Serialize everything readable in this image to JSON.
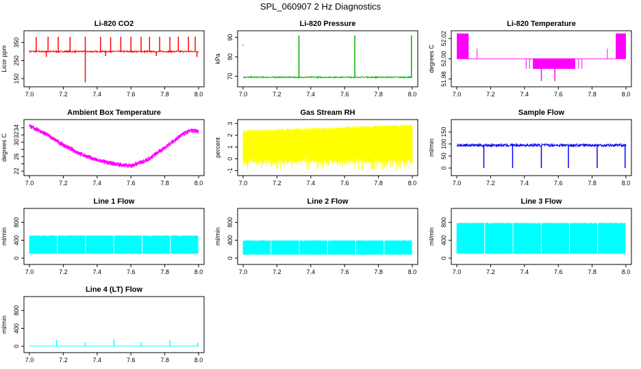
{
  "page": {
    "title": "SPL_060907  2 Hz Diagnostics"
  },
  "chart_data": [
    {
      "id": "co2",
      "type": "line",
      "title": "Li-820 CO2",
      "ylabel": "Licor ppm",
      "xlabel": "",
      "color": "#ff0000",
      "xlim": [
        7.0,
        8.0
      ],
      "ylim": [
        120,
        400
      ],
      "xticks": [
        "7.0",
        "7.2",
        "7.4",
        "7.6",
        "7.8",
        "8.0"
      ],
      "yticks": [
        150,
        250,
        350
      ],
      "ytick_labels": [
        "150",
        "250",
        "350"
      ],
      "series": {
        "name": "CO2",
        "baseline": 300,
        "noise": 4,
        "spikes": [
          [
            7.04,
            380
          ],
          [
            7.11,
            382
          ],
          [
            7.17,
            382
          ],
          [
            7.24,
            382
          ],
          [
            7.33,
            382
          ],
          [
            7.42,
            382
          ],
          [
            7.48,
            380
          ],
          [
            7.54,
            382
          ],
          [
            7.6,
            382
          ],
          [
            7.66,
            382
          ],
          [
            7.71,
            382
          ],
          [
            7.77,
            382
          ],
          [
            7.83,
            382
          ],
          [
            7.88,
            382
          ],
          [
            7.94,
            382
          ],
          [
            7.98,
            382
          ]
        ],
        "dips": [
          [
            7.33,
            130
          ],
          [
            7.1,
            270
          ],
          [
            7.45,
            275
          ],
          [
            7.75,
            275
          ],
          [
            7.99,
            270
          ]
        ]
      }
    },
    {
      "id": "pressure",
      "type": "line",
      "title": "Li-820 Pressure",
      "ylabel": "kPa",
      "xlabel": "",
      "color": "#00b000",
      "xlim": [
        7.0,
        8.0
      ],
      "ylim": [
        66,
        92
      ],
      "xticks": [
        "7.0",
        "7.2",
        "7.4",
        "7.6",
        "7.8",
        "8.0"
      ],
      "yticks": [
        70,
        80,
        90
      ],
      "ytick_labels": [
        "70",
        "80",
        "90"
      ],
      "series": {
        "name": "Pressure",
        "baseline": 69.5,
        "noise": 0.3,
        "spikes": [
          [
            7.33,
            91
          ],
          [
            7.66,
            91
          ],
          [
            7.995,
            91
          ]
        ],
        "outlier": [
          7.0,
          86
        ]
      }
    },
    {
      "id": "li820temp",
      "type": "line",
      "title": "Li-820 Temperature",
      "ylabel": "degrees C",
      "xlabel": "",
      "color": "#ff00ff",
      "xlim": [
        7.0,
        8.0
      ],
      "ylim": [
        51.975,
        52.025
      ],
      "xticks": [
        "7.0",
        "7.2",
        "7.4",
        "7.6",
        "7.8",
        "8.0"
      ],
      "yticks": [
        51.98,
        52.0,
        52.02
      ],
      "ytick_labels": [
        "51.98",
        "52.00",
        "52.02"
      ],
      "series": {
        "name": "Temperature",
        "baseline": 52.0,
        "high": 52.025,
        "mid": 52.01,
        "low": 51.99,
        "min": 51.978
      }
    },
    {
      "id": "ambient",
      "type": "line",
      "title": "Ambient Box Temperature",
      "ylabel": "degrees C",
      "xlabel": "",
      "color": "#ff00ff",
      "xlim": [
        7.0,
        8.0
      ],
      "ylim": [
        21.5,
        35.5
      ],
      "xticks": [
        "7.0",
        "7.2",
        "7.4",
        "7.6",
        "7.8",
        "8.0"
      ],
      "yticks": [
        22,
        24,
        26,
        28,
        30,
        32,
        34
      ],
      "ytick_labels": [
        "22",
        "",
        "26",
        "",
        "30",
        "32",
        "34"
      ],
      "series": {
        "name": "Ambient",
        "points": [
          [
            7.0,
            34.5
          ],
          [
            7.1,
            32.2
          ],
          [
            7.2,
            29.2
          ],
          [
            7.3,
            26.8
          ],
          [
            7.4,
            25.0
          ],
          [
            7.5,
            24.0
          ],
          [
            7.6,
            23.4
          ],
          [
            7.7,
            25.2
          ],
          [
            7.8,
            28.5
          ],
          [
            7.9,
            32.0
          ],
          [
            7.95,
            33.2
          ],
          [
            8.0,
            33.0
          ]
        ],
        "noise": 0.6
      }
    },
    {
      "id": "rh",
      "type": "line",
      "title": "Gas Stream RH",
      "ylabel": "percent",
      "xlabel": "",
      "color": "#ffff00",
      "xlim": [
        7.0,
        8.0
      ],
      "ylim": [
        -1.2,
        3.1
      ],
      "xticks": [
        "7.0",
        "7.2",
        "7.4",
        "7.6",
        "7.8",
        "8.0"
      ],
      "yticks": [
        -1,
        0,
        1,
        2,
        3
      ],
      "ytick_labels": [
        "-1",
        "0",
        "1",
        "2",
        "3"
      ],
      "series": {
        "name": "RH",
        "upper_start": 2.3,
        "upper_end": 2.8,
        "lower": -0.2,
        "min": -1.0
      }
    },
    {
      "id": "sample",
      "type": "line",
      "title": "Sample Flow",
      "ylabel": "ml/min",
      "xlabel": "",
      "color": "#0000ff",
      "xlim": [
        7.0,
        8.0
      ],
      "ylim": [
        -20,
        190
      ],
      "xticks": [
        "7.0",
        "7.2",
        "7.4",
        "7.6",
        "7.8",
        "8.0"
      ],
      "yticks": [
        0,
        50,
        100,
        150
      ],
      "ytick_labels": [
        "0",
        "50",
        "100",
        "150"
      ],
      "series": {
        "name": "Sample",
        "baseline": 95,
        "noise": 6,
        "dips": [
          [
            7.16,
            0
          ],
          [
            7.33,
            0
          ],
          [
            7.5,
            0
          ],
          [
            7.66,
            0
          ],
          [
            7.83,
            0
          ],
          [
            7.995,
            0
          ]
        ]
      }
    },
    {
      "id": "line1",
      "type": "line",
      "title": "Line 1 Flow",
      "ylabel": "ml/min",
      "xlabel": "",
      "color": "#00ffff",
      "xlim": [
        7.0,
        8.0
      ],
      "ylim": [
        -80,
        1050
      ],
      "xticks": [
        "7.0",
        "7.2",
        "7.4",
        "7.6",
        "7.8",
        "8.0"
      ],
      "yticks": [
        0,
        400,
        800
      ],
      "ytick_labels": [
        "0",
        "400",
        "800"
      ],
      "series": {
        "name": "Line 1",
        "high": 500,
        "low": 100
      }
    },
    {
      "id": "line2",
      "type": "line",
      "title": "Line 2 Flow",
      "ylabel": "ml/min",
      "xlabel": "",
      "color": "#00ffff",
      "xlim": [
        7.0,
        8.0
      ],
      "ylim": [
        -80,
        1050
      ],
      "xticks": [
        "7.0",
        "7.2",
        "7.4",
        "7.6",
        "7.8",
        "8.0"
      ],
      "yticks": [
        0,
        400,
        800
      ],
      "ytick_labels": [
        "0",
        "400",
        "800"
      ],
      "series": {
        "name": "Line 2",
        "high": 390,
        "low": 80
      }
    },
    {
      "id": "line3",
      "type": "line",
      "title": "Line 3 Flow",
      "ylabel": "ml/min",
      "xlabel": "",
      "color": "#00ffff",
      "xlim": [
        7.0,
        8.0
      ],
      "ylim": [
        -80,
        1050
      ],
      "xticks": [
        "7.0",
        "7.2",
        "7.4",
        "7.6",
        "7.8",
        "8.0"
      ],
      "yticks": [
        0,
        400,
        800
      ],
      "ytick_labels": [
        "0",
        "400",
        "800"
      ],
      "series": {
        "name": "Line 3",
        "high": 780,
        "low": 100
      }
    },
    {
      "id": "line4",
      "type": "line",
      "title": "Line 4 (LT) Flow",
      "ylabel": "ml/min",
      "xlabel": "",
      "color": "#00ffff",
      "xlim": [
        7.0,
        8.0
      ],
      "ylim": [
        -80,
        1050
      ],
      "xticks": [
        "7.0",
        "7.2",
        "7.4",
        "7.6",
        "7.8",
        "8.0"
      ],
      "yticks": [
        0,
        400,
        800
      ],
      "ytick_labels": [
        "0",
        "400",
        "800"
      ],
      "series": {
        "name": "Line 4",
        "baseline": 5,
        "spikes": [
          [
            7.16,
            150
          ],
          [
            7.33,
            90
          ],
          [
            7.5,
            160
          ],
          [
            7.66,
            90
          ],
          [
            7.83,
            130
          ],
          [
            7.995,
            80
          ]
        ]
      }
    }
  ]
}
